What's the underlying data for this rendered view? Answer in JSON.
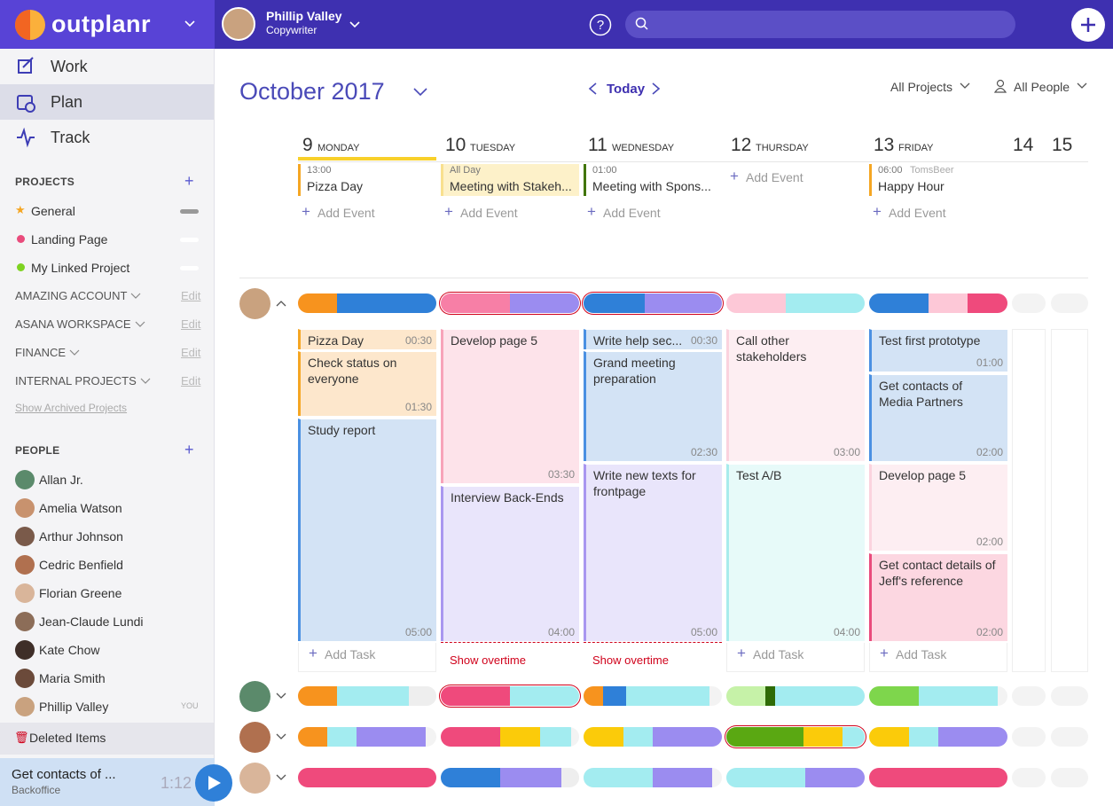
{
  "app": {
    "logo": "outplanr"
  },
  "user": {
    "name": "Phillip Valley",
    "role": "Copywriter"
  },
  "nav": [
    "Work",
    "Plan",
    "Track"
  ],
  "projects": {
    "heading": "PROJECTS",
    "items": [
      {
        "name": "General",
        "color": "#f5a623"
      },
      {
        "name": "Landing Page",
        "color": "#e94b7c"
      },
      {
        "name": "My Linked Project",
        "color": "#7ed321"
      }
    ],
    "groups": [
      "AMAZING ACCOUNT",
      "ASANA WORKSPACE",
      "FINANCE",
      "INTERNAL PROJECTS"
    ],
    "edit": "Edit",
    "show_archived": "Show Archived Projects"
  },
  "people": {
    "heading": "PEOPLE",
    "items": [
      "Allan Jr.",
      "Amelia Watson",
      "Arthur Johnson",
      "Cedric Benfield",
      "Florian Greene",
      "Jean-Claude Lundi",
      "Kate Chow",
      "Maria Smith",
      "Phillip Valley"
    ],
    "you": "YOU"
  },
  "deleted": "Deleted Items",
  "timer": {
    "task": "Get contacts of ...",
    "project": "Backoffice",
    "time": "1:12"
  },
  "calendar": {
    "month": "October 2017",
    "today": "Today",
    "filters": [
      "All Projects",
      "All People"
    ],
    "days": [
      {
        "num": "9",
        "name": "MONDAY"
      },
      {
        "num": "10",
        "name": "TUESDAY"
      },
      {
        "num": "11",
        "name": "WEDNESDAY"
      },
      {
        "num": "12",
        "name": "THURSDAY"
      },
      {
        "num": "13",
        "name": "FRIDAY"
      },
      {
        "num": "14"
      },
      {
        "num": "15"
      }
    ],
    "add_event": "Add Event",
    "events": [
      [
        {
          "time": "13:00",
          "title": "Pizza Day",
          "color": "#f5a623"
        }
      ],
      [
        {
          "time": "All Day",
          "title": "Meeting with Stakeh...",
          "color": "#f8e08e"
        }
      ],
      [
        {
          "time": "01:00",
          "title": "Meeting with Spons...",
          "color": "#417505"
        }
      ],
      [],
      [
        {
          "time": "06:00",
          "meta": "TomsBeer",
          "title": "Happy Hour",
          "color": "#f5a623"
        }
      ]
    ],
    "tasks": [
      [
        {
          "title": "Pizza Day",
          "duration": "00:30",
          "color": "#f5a623",
          "fill": "#fde7cc"
        },
        {
          "title": "Check status on everyone",
          "duration": "01:30",
          "color": "#f5a623",
          "fill": "#fde7cc"
        },
        {
          "title": "Study report",
          "duration": "05:00",
          "color": "#4a90e2",
          "fill": "#d3e3f5"
        }
      ],
      [
        {
          "title": "Develop page 5",
          "duration": "03:30",
          "color": "#f7a3b9",
          "fill": "#fde3ea"
        },
        {
          "title": "Interview Back-Ends",
          "duration": "04:00",
          "color": "#a997f0",
          "fill": "#e9e5fb"
        }
      ],
      [
        {
          "title": "Write help sec...",
          "duration": "00:30",
          "color": "#4a90e2",
          "fill": "#d3e3f5"
        },
        {
          "title": "Grand meeting preparation",
          "duration": "02:30",
          "color": "#4a90e2",
          "fill": "#d3e3f5"
        },
        {
          "title": "Write new texts for frontpage",
          "duration": "05:00",
          "color": "#a997f0",
          "fill": "#e9e5fb"
        }
      ],
      [
        {
          "title": "Call other stakeholders",
          "duration": "03:00",
          "color": "#fbd3de",
          "fill": "#fdeef2"
        },
        {
          "title": "Test A/B",
          "duration": "04:00",
          "color": "#a8ecec",
          "fill": "#e7faf9"
        }
      ],
      [
        {
          "title": "Test first prototype",
          "duration": "01:00",
          "color": "#4a90e2",
          "fill": "#d3e3f5"
        },
        {
          "title": "Get contacts of Media Partners",
          "duration": "02:00",
          "color": "#4a90e2",
          "fill": "#d3e3f5"
        },
        {
          "title": "Develop page 5",
          "duration": "02:00",
          "color": "#fbd3de",
          "fill": "#fdeef2"
        },
        {
          "title": "Get contact details of Jeff's reference",
          "duration": "02:00",
          "color": "#e94b7c",
          "fill": "#fcd7e1"
        }
      ]
    ],
    "footers": [
      "Add Task",
      "Show overtime",
      "Show overtime",
      "Add Task",
      "Add Task"
    ]
  }
}
